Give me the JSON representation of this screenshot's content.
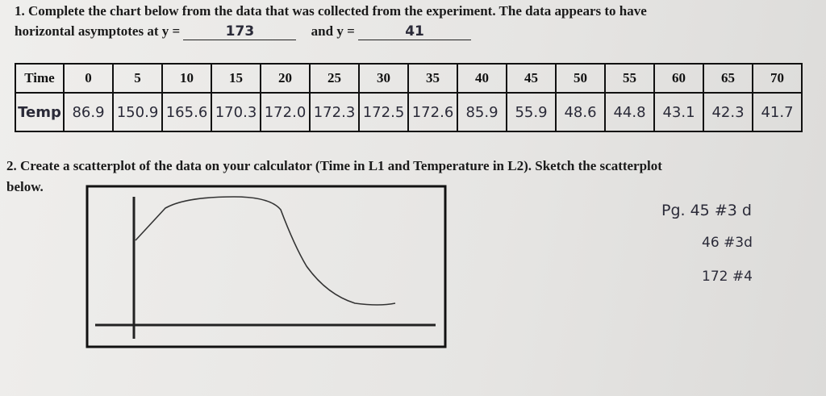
{
  "question1": {
    "line1": "1. Complete the chart below from the data that was collected from the experiment.  The data appears to have",
    "line2_prefix": "horizontal asymptotes at y =",
    "answer1": "173",
    "line2_middle": "and y =",
    "answer2": "41"
  },
  "table": {
    "rows": [
      [
        "Time",
        "0",
        "5",
        "10",
        "15",
        "20",
        "25",
        "30",
        "35",
        "40",
        "45",
        "50",
        "55",
        "60",
        "65",
        "70"
      ],
      [
        "Temp",
        "86.9",
        "150.9",
        "165.6",
        "170.3",
        "172.0",
        "172.3",
        "172.5",
        "172.6",
        "85.9",
        "55.9",
        "48.6",
        "44.8",
        "43.1",
        "42.3",
        "41.7"
      ]
    ]
  },
  "question2": {
    "line1": "2.  Create a scatterplot of the data on your calculator (Time in L1 and Temperature in L2).  Sketch the scatterplot",
    "line2": "below."
  },
  "notes": [
    "Pg. 45 #3 d",
    "46 #3d",
    "172 #4"
  ]
}
